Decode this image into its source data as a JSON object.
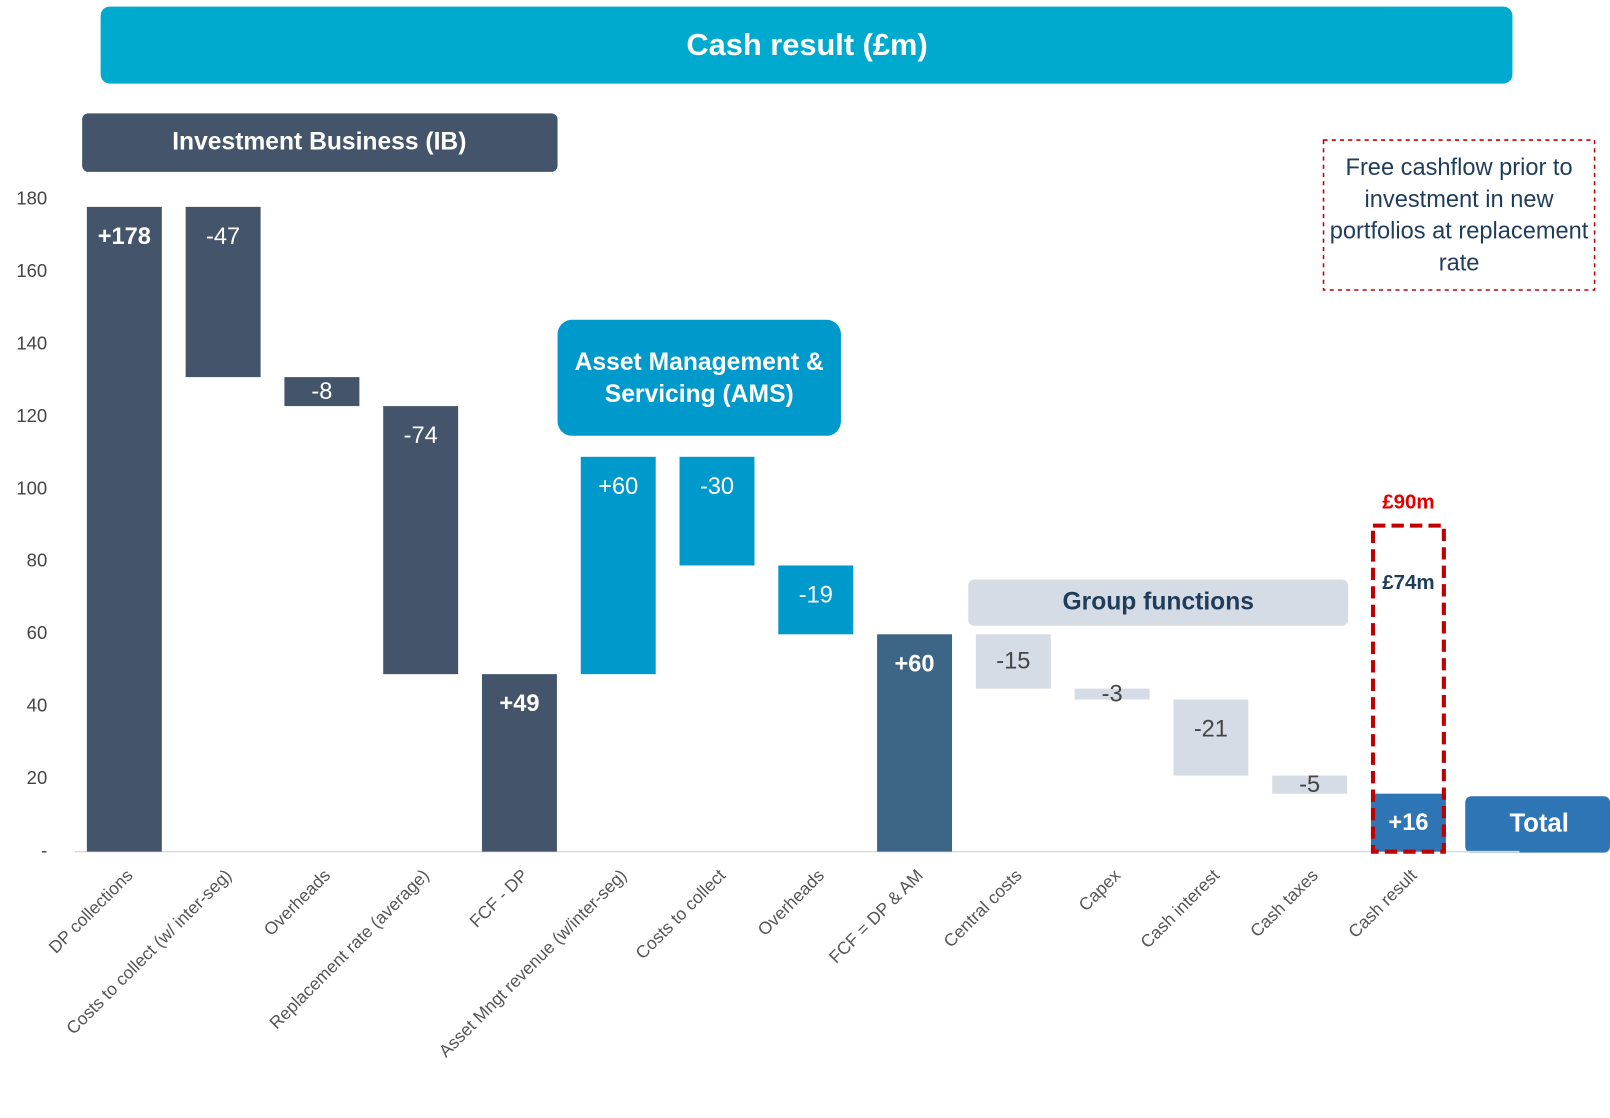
{
  "chart_data": {
    "type": "waterfall",
    "title": "Cash result (£m)",
    "categories": [
      "DP collections",
      "Costs to collect (w/ inter-seg)",
      "Overheads",
      "Replacement rate (average)",
      "FCF - DP",
      "Asset Mngt revenue (w/inter-seg)",
      "Costs to collect",
      "Overheads",
      "FCF = DP & AM",
      "Central costs",
      "Capex",
      "Cash interest",
      "Cash taxes",
      "Cash result"
    ],
    "values": [
      178,
      -47,
      -8,
      -74,
      49,
      60,
      -30,
      -19,
      60,
      -15,
      -3,
      -21,
      -5,
      16
    ],
    "value_labels": [
      "+178",
      "-47",
      "-8",
      "-74",
      "+49",
      "+60",
      "-30",
      "-19",
      "+60",
      "-15",
      "-3",
      "-21",
      "-5",
      "+16"
    ],
    "colors": [
      "#44546a",
      "#44546a",
      "#44546a",
      "#44546a",
      "#44546a",
      "#0099cc",
      "#0099cc",
      "#0099cc",
      "#3d6585",
      "#d6dce5",
      "#d6dce5",
      "#d6dce5",
      "#d6dce5",
      "#2e75b6"
    ],
    "ylim": [
      0,
      180
    ],
    "yticks": [
      {
        "value": 0,
        "label": "-"
      },
      20,
      40,
      60,
      80,
      100,
      120,
      140,
      160,
      180
    ],
    "segments": [
      "Investment Business (IB)",
      "Asset Management & Servicing (AMS)",
      "Group functions"
    ],
    "note": "Free cashflow prior to investment in new portfolios at replacement rate",
    "highlight": [
      {
        "label": "£90m",
        "value": 90
      },
      {
        "label": "£74m",
        "value": 74
      }
    ],
    "total_label": "Total"
  }
}
